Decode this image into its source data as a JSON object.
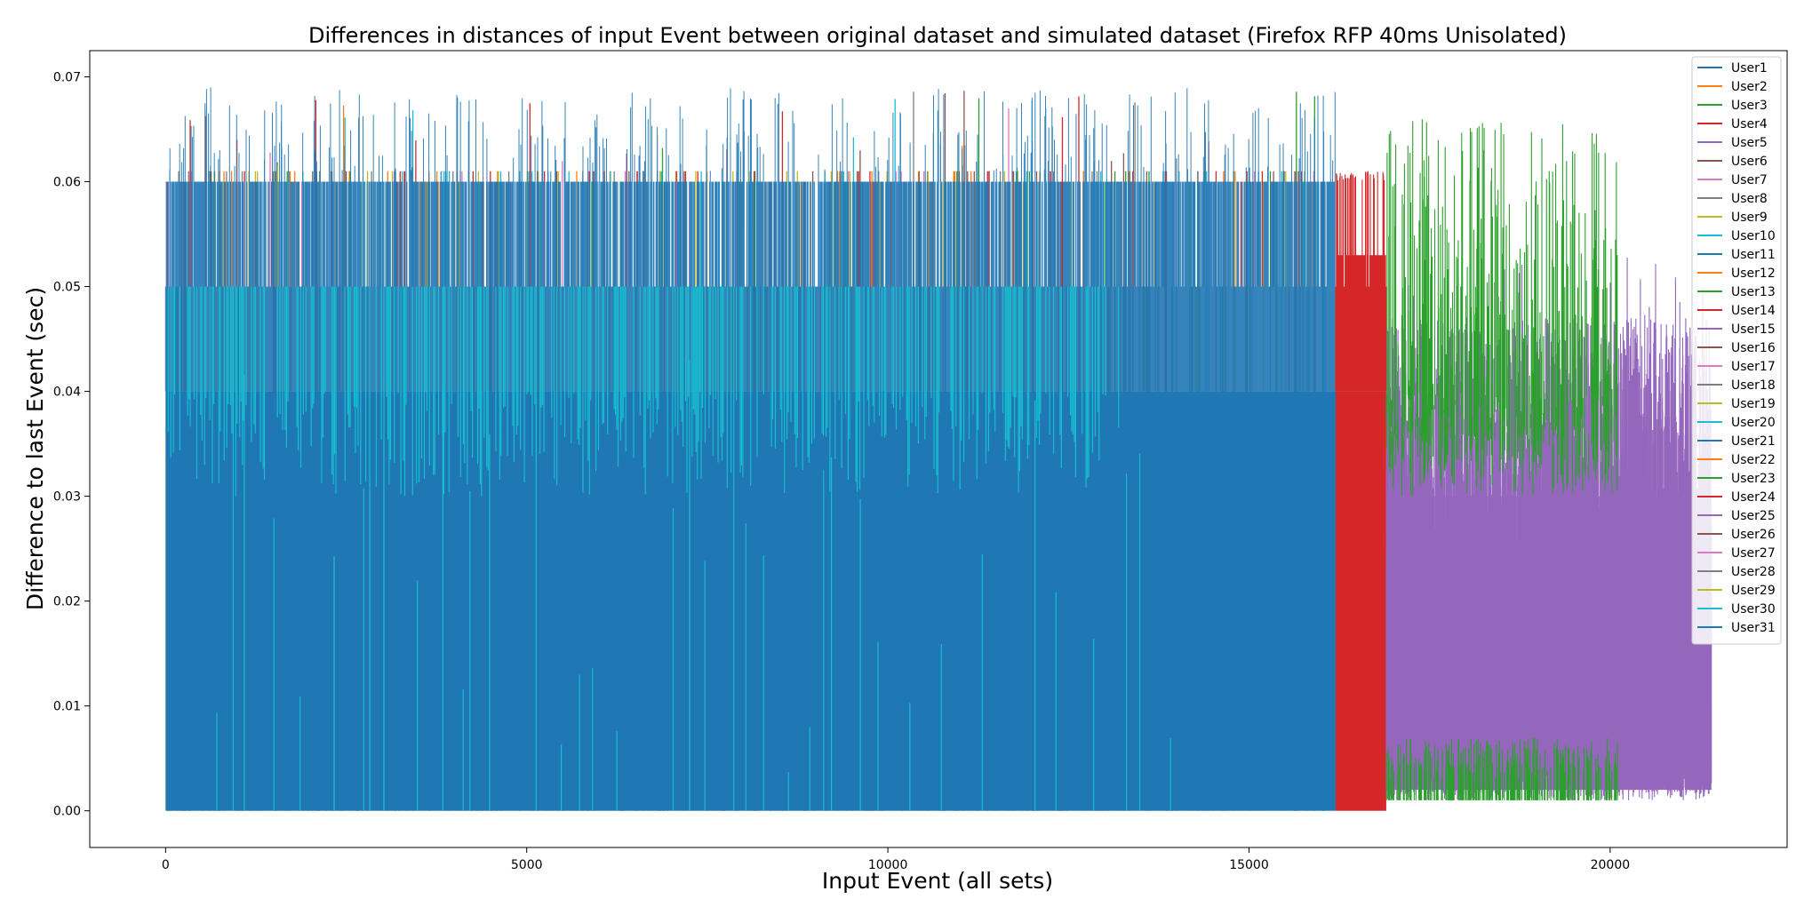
{
  "chart_data": {
    "type": "line",
    "title": "Differences in distances of input Event between original dataset and simulated dataset (Firefox RFP 40ms Unisolated)",
    "xlabel": "Input Event (all sets)",
    "ylabel": "Difference to last Event (sec)",
    "xlim": [
      -1050,
      22450
    ],
    "ylim": [
      -0.0035,
      0.0725
    ],
    "xticks": [
      0,
      5000,
      10000,
      15000,
      20000
    ],
    "xtick_labels": [
      "0",
      "5000",
      "10000",
      "15000",
      "20000"
    ],
    "yticks": [
      0.0,
      0.01,
      0.02,
      0.03,
      0.04,
      0.05,
      0.06,
      0.07
    ],
    "ytick_labels": [
      "0.00",
      "0.01",
      "0.02",
      "0.03",
      "0.04",
      "0.05",
      "0.06",
      "0.07"
    ],
    "grid": false,
    "legend_position": "top-right",
    "series": [
      {
        "name": "User1",
        "color": "#1f77b4",
        "x_range": [
          0,
          16200
        ],
        "values_min": 0.0,
        "values_max": 0.069,
        "typical_values": [
          0.0,
          0.04,
          0.05,
          0.06
        ]
      },
      {
        "name": "User2",
        "color": "#ff7f0e",
        "x_range": [
          0,
          16000
        ],
        "values_min": 0.0,
        "values_max": 0.065
      },
      {
        "name": "User3",
        "color": "#2ca02c",
        "x_range": [
          0,
          20100
        ],
        "values_min": 0.0,
        "values_max": 0.066
      },
      {
        "name": "User4",
        "color": "#d62728",
        "x_range": [
          16200,
          16900
        ],
        "values_min": 0.0,
        "values_max": 0.061
      },
      {
        "name": "User5",
        "color": "#9467bd",
        "x_range": [
          16900,
          21400
        ],
        "values_min": 0.0,
        "values_max": 0.053
      },
      {
        "name": "User6",
        "color": "#8c564b",
        "x_range": [
          0,
          16000
        ],
        "values_min": 0.0,
        "values_max": 0.069
      },
      {
        "name": "User7",
        "color": "#e377c2",
        "x_range": [
          0,
          16000
        ],
        "values_min": 0.0,
        "values_max": 0.068
      },
      {
        "name": "User8",
        "color": "#7f7f7f",
        "x_range": [
          0,
          16000
        ],
        "values_min": 0.0,
        "values_max": 0.067
      },
      {
        "name": "User9",
        "color": "#bcbd22",
        "x_range": [
          0,
          16000
        ],
        "values_min": 0.0,
        "values_max": 0.068
      },
      {
        "name": "User10",
        "color": "#17becf",
        "x_range": [
          0,
          16000
        ],
        "values_min": 0.0,
        "values_max": 0.065
      },
      {
        "name": "User11",
        "color": "#1f77b4"
      },
      {
        "name": "User12",
        "color": "#ff7f0e"
      },
      {
        "name": "User13",
        "color": "#2ca02c"
      },
      {
        "name": "User14",
        "color": "#d62728"
      },
      {
        "name": "User15",
        "color": "#9467bd"
      },
      {
        "name": "User16",
        "color": "#8c564b"
      },
      {
        "name": "User17",
        "color": "#e377c2"
      },
      {
        "name": "User18",
        "color": "#7f7f7f"
      },
      {
        "name": "User19",
        "color": "#bcbd22"
      },
      {
        "name": "User20",
        "color": "#17becf"
      },
      {
        "name": "User21",
        "color": "#1f77b4"
      },
      {
        "name": "User22",
        "color": "#ff7f0e"
      },
      {
        "name": "User23",
        "color": "#2ca02c"
      },
      {
        "name": "User24",
        "color": "#d62728"
      },
      {
        "name": "User25",
        "color": "#9467bd"
      },
      {
        "name": "User26",
        "color": "#8c564b"
      },
      {
        "name": "User27",
        "color": "#e377c2"
      },
      {
        "name": "User28",
        "color": "#7f7f7f"
      },
      {
        "name": "User29",
        "color": "#bcbd22"
      },
      {
        "name": "User30",
        "color": "#17becf"
      },
      {
        "name": "User31",
        "color": "#1f77b4"
      }
    ]
  }
}
